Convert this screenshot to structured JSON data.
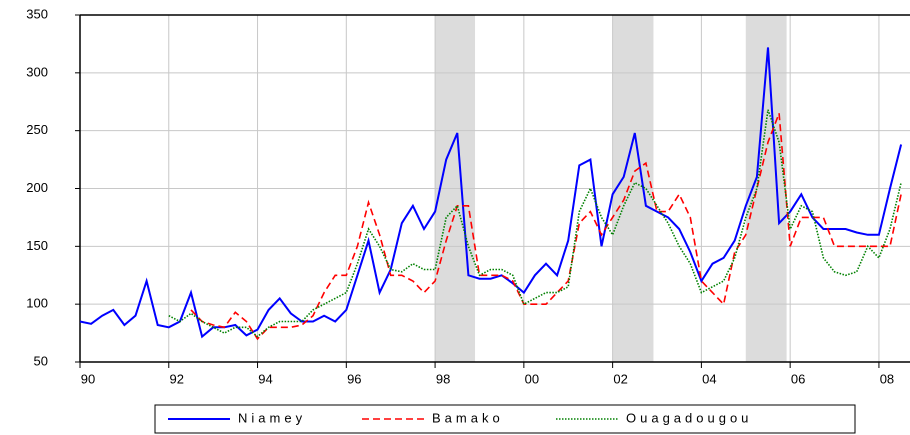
{
  "chart_data": {
    "type": "line",
    "x": [
      1990,
      1990.25,
      1990.5,
      1990.75,
      1991,
      1991.25,
      1991.5,
      1991.75,
      1992,
      1992.25,
      1992.5,
      1992.75,
      1993,
      1993.25,
      1993.5,
      1993.75,
      1994,
      1994.25,
      1994.5,
      1994.75,
      1995,
      1995.25,
      1995.5,
      1995.75,
      1996,
      1996.25,
      1996.5,
      1996.75,
      1997,
      1997.25,
      1997.5,
      1997.75,
      1998,
      1998.25,
      1998.5,
      1998.75,
      1999,
      1999.25,
      1999.5,
      1999.75,
      2000,
      2000.25,
      2000.5,
      2000.75,
      2001,
      2001.25,
      2001.5,
      2001.75,
      2002,
      2002.25,
      2002.5,
      2002.75,
      2003,
      2003.25,
      2003.5,
      2003.75,
      2004,
      2004.25,
      2004.5,
      2004.75,
      2005,
      2005.25,
      2005.5,
      2005.75,
      2006,
      2006.25,
      2006.5,
      2006.75,
      2007,
      2007.25,
      2007.5,
      2007.75,
      2008,
      2008.25,
      2008.5
    ],
    "series": [
      {
        "name": "Niamey",
        "color": "#0000ff",
        "dash": "solid",
        "values": [
          85,
          83,
          90,
          95,
          82,
          90,
          120,
          82,
          80,
          85,
          110,
          72,
          80,
          80,
          82,
          73,
          78,
          95,
          105,
          92,
          85,
          85,
          90,
          85,
          95,
          125,
          155,
          110,
          130,
          170,
          185,
          165,
          180,
          225,
          248,
          125,
          122,
          122,
          125,
          118,
          110,
          125,
          135,
          125,
          155,
          220,
          225,
          150,
          195,
          210,
          248,
          185,
          180,
          175,
          165,
          145,
          120,
          135,
          140,
          155,
          185,
          210,
          322,
          170,
          180,
          195,
          175,
          165,
          165,
          165,
          162,
          160,
          160,
          200,
          238
        ]
      },
      {
        "name": "Bamako",
        "color": "#ff0000",
        "dash": "dashed",
        "values": [
          null,
          null,
          null,
          null,
          null,
          null,
          null,
          null,
          null,
          null,
          95,
          85,
          82,
          80,
          93,
          85,
          70,
          80,
          80,
          80,
          82,
          90,
          110,
          125,
          125,
          150,
          188,
          160,
          125,
          125,
          120,
          110,
          120,
          155,
          185,
          185,
          125,
          125,
          125,
          120,
          100,
          100,
          100,
          110,
          120,
          170,
          180,
          160,
          175,
          190,
          215,
          222,
          180,
          180,
          195,
          175,
          120,
          110,
          100,
          145,
          160,
          200,
          240,
          265,
          150,
          175,
          175,
          175,
          150,
          150,
          150,
          150,
          150,
          150,
          195
        ]
      },
      {
        "name": "Ouagadougou",
        "color": "#008000",
        "dash": "dotted",
        "values": [
          null,
          null,
          null,
          null,
          null,
          null,
          null,
          null,
          90,
          85,
          92,
          85,
          80,
          75,
          80,
          80,
          72,
          80,
          85,
          85,
          85,
          95,
          100,
          105,
          110,
          135,
          165,
          150,
          130,
          128,
          135,
          130,
          130,
          175,
          185,
          150,
          125,
          130,
          130,
          125,
          100,
          105,
          110,
          110,
          115,
          180,
          200,
          175,
          160,
          185,
          205,
          200,
          185,
          170,
          150,
          135,
          110,
          115,
          120,
          140,
          175,
          200,
          268,
          240,
          165,
          185,
          180,
          140,
          128,
          125,
          128,
          150,
          140,
          165,
          205
        ]
      }
    ],
    "xlim": [
      1990,
      2008.7
    ],
    "xticks": [
      {
        "value": 1990,
        "label": "90"
      },
      {
        "value": 1992,
        "label": "92"
      },
      {
        "value": 1994,
        "label": "94"
      },
      {
        "value": 1996,
        "label": "96"
      },
      {
        "value": 1998,
        "label": "98"
      },
      {
        "value": 2000,
        "label": "00"
      },
      {
        "value": 2002,
        "label": "02"
      },
      {
        "value": 2004,
        "label": "04"
      },
      {
        "value": 2006,
        "label": "06"
      },
      {
        "value": 2008,
        "label": "08"
      }
    ],
    "ylim": [
      50,
      350
    ],
    "yticks": [
      50,
      100,
      150,
      200,
      250,
      300,
      350
    ],
    "grid": true,
    "shaded_periods": [
      [
        1998,
        1998.9
      ],
      [
        2002,
        2002.92
      ],
      [
        2005,
        2005.92
      ]
    ],
    "legend": "bottom"
  }
}
